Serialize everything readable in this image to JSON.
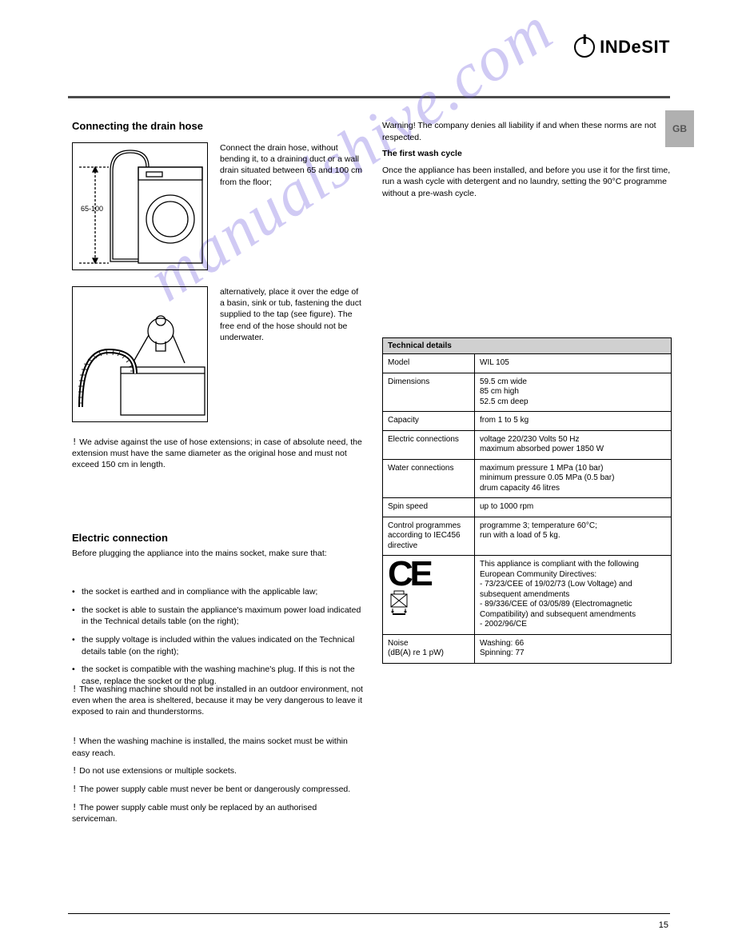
{
  "brand": "INDeSIT",
  "lang_tab": "GB",
  "page_number": "15",
  "watermark": "manualshive.com",
  "sec_drain_title": "Connecting the drain hose",
  "drain_p1": "Connect the drain hose, without bending it, to a draining duct or a wall drain situated between 65 and 100 cm from the floor;",
  "drain_height_top": "100 cm",
  "drain_height_bottom": "65 cm",
  "drain_p2": "alternatively, place it over the edge of a basin, sink or tub, fastening the duct supplied to the tap (see figure). The free end of the hose should not be underwater.",
  "warn_ext": "We advise against the use of hose extensions; in case of absolute need, the extension must have the same diameter as the original hose and must not exceed 150 cm in length.",
  "warn_ext_sym": "!",
  "sec_elec_title": "Electric connection",
  "elec_intro": "Before plugging the appliance into the mains socket, make sure that:",
  "bullet1": "the socket is earthed and in compliance with the applicable law;",
  "bullet2": "the socket is able to sustain the appliance's maximum power load indicated in the Technical details table (on the right);",
  "bullet3": "the supply voltage is included within the values indicated on the Technical details table (on the right);",
  "bullet4": "the socket is compatible with the washing machine's plug. If this is not the case, replace the socket or the plug.",
  "warn_outdoor": "The washing machine should not be installed in an outdoor environment, not even when the area is sheltered, because it may be very dangerous to leave it exposed to rain and thunderstorms.",
  "warn_socket": "When the washing machine is installed, the mains socket must be within easy reach.",
  "warn_noextmulti": "Do not use extensions or multiple sockets.",
  "warn_cable": "The power supply cable must never be bent or dangerously compressed.",
  "warn_cable_replace": "The power supply cable must only be replaced by an authorised serviceman.",
  "col2_top": "Warning! The company denies all liability if and when these norms are not respected.",
  "sec_first_title": "The first wash cycle",
  "first_body": "Once the appliance has been installed, and before you use it for the first time, run a wash cycle with detergent and no laundry, setting the 90°C programme without a pre-wash cycle.",
  "warn_sym": "!",
  "table": {
    "header": "Technical details",
    "rows": [
      {
        "k": "Model",
        "v": "WIL 105"
      },
      {
        "k": "Dimensions",
        "v": "59.5 cm wide\n85 cm high\n52.5 cm deep"
      },
      {
        "k": "Capacity",
        "v": "from 1 to 5 kg"
      },
      {
        "k": "Electric connections",
        "v": "voltage 220/230 Volts 50 Hz\nmaximum absorbed power 1850 W"
      },
      {
        "k": "Water connections",
        "v": "maximum pressure 1 MPa (10 bar)\nminimum pressure 0.05 MPa (0.5 bar)\ndrum capacity 46 litres"
      },
      {
        "k": "Spin speed",
        "v": "up to 1000 rpm"
      },
      {
        "k": "Control programmes according to IEC456 directive",
        "v": "programme 3; temperature 60°C;\nrun with a load of 5 kg."
      },
      {
        "k": "",
        "v": "This appliance is compliant with the following European Community Directives:\n- 73/23/CEE of 19/02/73 (Low Voltage) and subsequent amendments\n- 89/336/CEE of 03/05/89 (Electromagnetic Compatibility) and subsequent amendments\n- 2002/96/CE",
        "ce": true
      },
      {
        "k": "Noise\n(dB(A) re 1 pW)",
        "v": "Washing: 66\nSpinning: 77"
      }
    ]
  }
}
